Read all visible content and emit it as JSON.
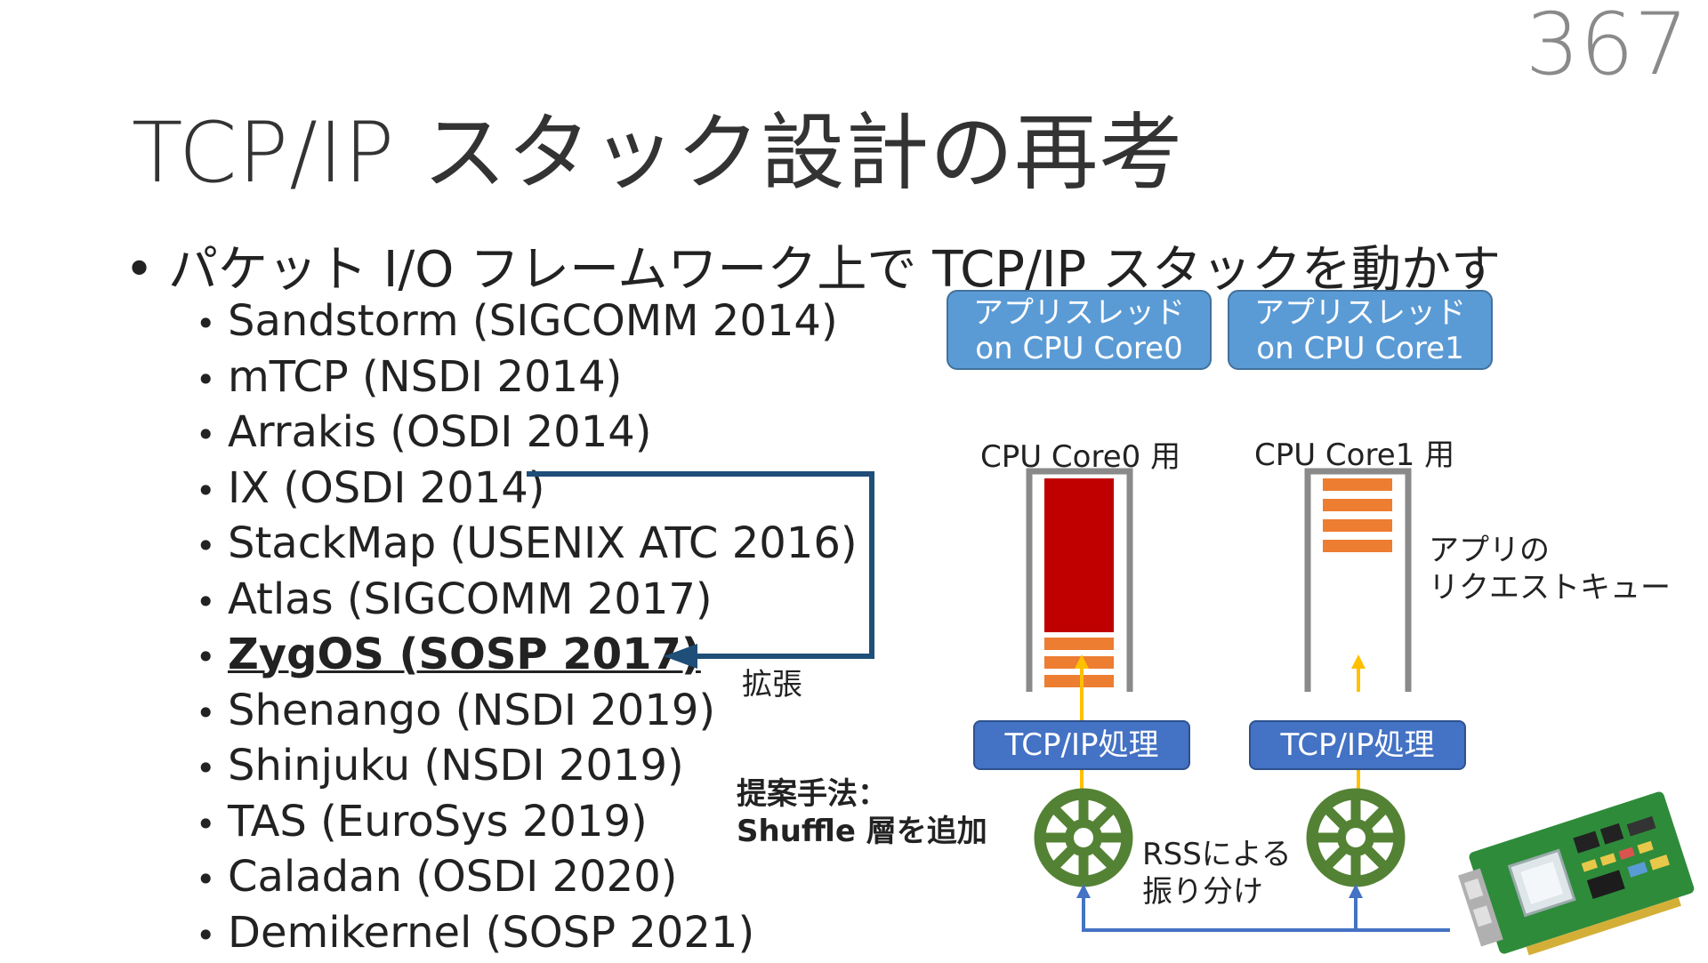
{
  "page_number": "367",
  "title": "TCP/IP スタック設計の再考",
  "main_bullet": "パケット I/O フレームワーク上で TCP/IP スタックを動かす",
  "systems": [
    "Sandstorm (SIGCOMM 2014)",
    "mTCP (NSDI 2014)",
    "Arrakis (OSDI 2014)",
    "IX (OSDI 2014)",
    "StackMap (USENIX ATC 2016)",
    "Atlas (SIGCOMM 2017)",
    "ZygOS (SOSP 2017)",
    "Shenango (NSDI 2019)",
    "Shinjuku (NSDI 2019)",
    "TAS (EuroSys 2019)",
    "Caladan (OSDI 2020)",
    "Demikernel (SOSP 2021)"
  ],
  "highlighted_index": 6,
  "extension_label": "拡張",
  "diagram": {
    "app_threads": [
      {
        "line1": "アプリスレッド",
        "line2": "on CPU Core0"
      },
      {
        "line1": "アプリスレッド",
        "line2": "on CPU Core1"
      }
    ],
    "core_labels": [
      "CPU Core0 用",
      "CPU Core1 用"
    ],
    "queue_note": [
      "アプリの",
      "リクエストキュー"
    ],
    "tcp_labels": [
      "TCP/IP処理",
      "TCP/IP処理"
    ],
    "rss_note": [
      "RSSによる",
      "振り分け"
    ],
    "proposal": [
      "提案手法：",
      "Shuffle 層を追加"
    ]
  },
  "colors": {
    "app_box": "#5b9bd5",
    "tcp_box": "#4472c4",
    "queue_full": "#c00000",
    "queue_item": "#ed7d31",
    "arrow_up": "#ffc000",
    "wire": "#4472c4",
    "extension_arrow": "#1f4e79",
    "rss_wheel": "#548235"
  },
  "icons": [
    "rss-wheel-icon",
    "nic-card-icon"
  ]
}
